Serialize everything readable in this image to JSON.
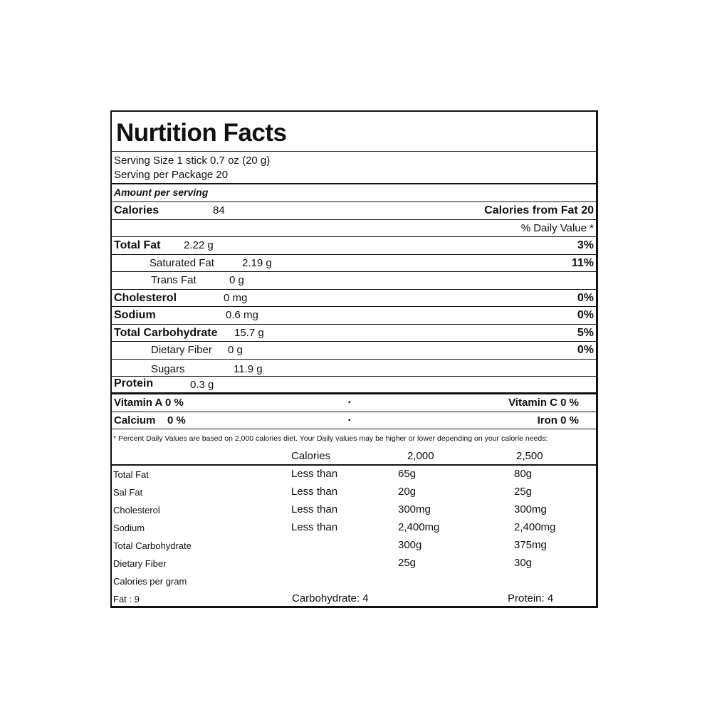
{
  "title": "Nurtition Facts",
  "serving_size": "Serving Size 1 stick 0.7 oz (20 g)",
  "servings_per_package": "Serving per Package 20",
  "amount_per_serving": "Amount per serving",
  "calories": {
    "label": "Calories",
    "value": "84",
    "from_fat": "Calories from Fat 20"
  },
  "daily_value_header": "% Daily Value *",
  "nutrients": [
    {
      "label": "Total Fat",
      "amount": "2.22 g",
      "dv": "3%"
    },
    {
      "label": "Saturated Fat",
      "amount": "2.19 g",
      "dv": "11%"
    },
    {
      "label": "Trans Fat",
      "amount": "0 g",
      "dv": ""
    },
    {
      "label": "Cholesterol",
      "amount": "0 mg",
      "dv": "0%"
    },
    {
      "label": "Sodium",
      "amount": "0.6 mg",
      "dv": "0%"
    },
    {
      "label": "Total Carbohydrate",
      "amount": "15.7 g",
      "dv": "5%"
    },
    {
      "label": "Dietary Fiber",
      "amount": "0 g",
      "dv": "0%"
    },
    {
      "label": "Sugars",
      "amount": "11.9 g",
      "dv": ""
    },
    {
      "label": "Protein",
      "amount": "0.3 g",
      "dv": ""
    }
  ],
  "vitamins": [
    {
      "left": "Vitamin A  0 %",
      "sep": "▪",
      "right": "Vitamin C  0 %"
    },
    {
      "left": "Calcium    0 %",
      "sep": "▪",
      "right": "Iron  0 %"
    }
  ],
  "footnote": "* Percent Daily Values are based on 2,000 calories diet. Your Daily values may be higher or lower depending on your calorie needs:",
  "dv_table": {
    "header": [
      "",
      "Calories",
      "2,000",
      "2,500"
    ],
    "rows": [
      [
        "Total Fat",
        "Less than",
        "65g",
        "80g"
      ],
      [
        "Sal Fat",
        "Less than",
        "20g",
        "25g"
      ],
      [
        "Cholesterol",
        "Less than",
        "300mg",
        "300mg"
      ],
      [
        "Sodium",
        "Less than",
        "2,400mg",
        "2,400mg"
      ],
      [
        "Total Carbohydrate",
        "",
        "300g",
        "375mg"
      ],
      [
        "Dietary Fiber",
        "",
        "25g",
        "30g"
      ]
    ]
  },
  "calories_per_gram": {
    "label": "Calories per gram",
    "fat": "Fat : 9",
    "carbohydrate": "Carbohydrate: 4",
    "protein": "Protein: 4"
  }
}
